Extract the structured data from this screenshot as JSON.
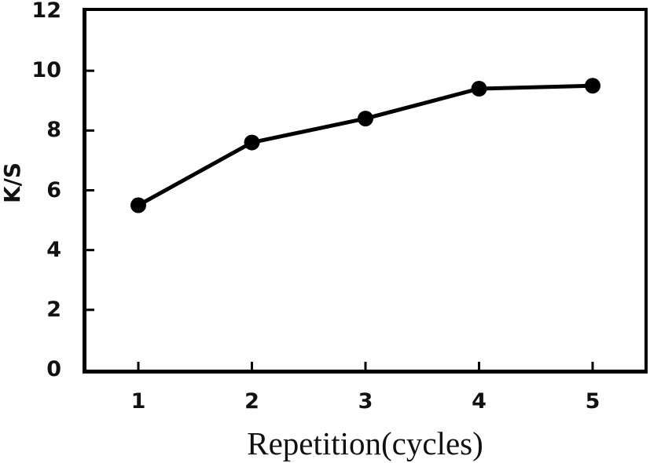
{
  "chart_data": {
    "type": "line",
    "title": "",
    "xlabel": "Repetition(cycles)",
    "ylabel": "K/S",
    "x": [
      1,
      2,
      3,
      4,
      5
    ],
    "y": [
      5.5,
      7.6,
      8.4,
      9.4,
      9.5
    ],
    "xticks": [
      "1",
      "2",
      "3",
      "4",
      "5"
    ],
    "yticks": [
      "0",
      "2",
      "4",
      "6",
      "8",
      "10",
      "12"
    ],
    "ytick_values": [
      0,
      2,
      4,
      6,
      8,
      10,
      12
    ],
    "ylim": [
      0,
      12
    ],
    "grid": false,
    "legend": "none",
    "tick_direction": "in",
    "plot_border": "full-box",
    "marker": "filled-circle",
    "line_color": "#000000",
    "marker_color": "#000000",
    "axis_color": "#000000",
    "text_color": "#111111",
    "background_color": "#ffffff"
  }
}
